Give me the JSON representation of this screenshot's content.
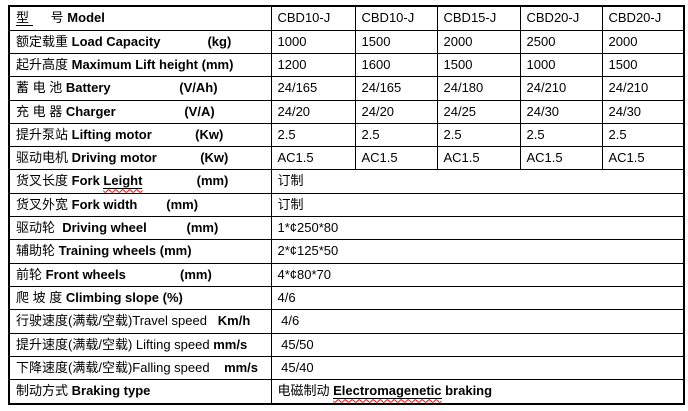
{
  "colors": {
    "border": "#000000",
    "text": "#000000",
    "accent_red": "#ff0000",
    "squiggle_red": "#ff0000",
    "background": "#ffffff"
  },
  "table": {
    "rows": [
      {
        "label_parts": [
          {
            "t": "型 ",
            "u": true
          },
          {
            "t": "     号 "
          },
          {
            "t": "Model",
            "b": true
          }
        ],
        "values": [
          "CBD10-J",
          "CBD10-J",
          "CBD15-J",
          "CBD20-J",
          "CBD20-J"
        ]
      },
      {
        "label_parts": [
          {
            "t": "额定载重 "
          },
          {
            "t": "Load Capacity",
            "b": true
          },
          {
            "t": "             "
          },
          {
            "t": "(kg)",
            "b": true
          }
        ],
        "values": [
          "1000",
          "1500",
          "2000",
          "2500",
          "2000"
        ]
      },
      {
        "label_parts": [
          {
            "t": "起升高度 "
          },
          {
            "t": "Maximum Lift height (mm)",
            "b": true
          }
        ],
        "values": [
          "1200",
          "1600",
          "1500",
          "1000",
          "1500"
        ]
      },
      {
        "label_parts": [
          {
            "t": "蓄 电 池 "
          },
          {
            "t": "Battery",
            "b": true
          },
          {
            "t": "                   "
          },
          {
            "t": "(V/Ah)",
            "b": true
          }
        ],
        "values": [
          "24/165",
          "24/165",
          "24/180",
          "24/210",
          "24/210"
        ]
      },
      {
        "label_parts": [
          {
            "t": "充 电 器 "
          },
          {
            "t": "Charger",
            "b": true
          },
          {
            "t": "                   "
          },
          {
            "t": "(V/A)",
            "b": true
          }
        ],
        "values": [
          "24/20",
          "24/20",
          "24/25",
          "24/30",
          "24/30"
        ]
      },
      {
        "label_parts": [
          {
            "t": "提升泵站 "
          },
          {
            "t": "Lifting motor",
            "b": true
          },
          {
            "t": "            "
          },
          {
            "t": "(Kw)",
            "b": true
          }
        ],
        "values": [
          "2.5",
          "2.5",
          "2.5",
          "2.5",
          "2.5"
        ],
        "value_color": "red"
      },
      {
        "label_parts": [
          {
            "t": "驱动电机 "
          },
          {
            "t": "Driving motor",
            "b": true
          },
          {
            "t": "            "
          },
          {
            "t": "(Kw)",
            "b": true
          }
        ],
        "values": [
          "AC1.5",
          "AC1.5",
          "AC1.5",
          "AC1.5",
          "AC1.5"
        ]
      },
      {
        "label_parts": [
          {
            "t": "货叉长度 "
          },
          {
            "t": "Fork ",
            "b": true
          },
          {
            "t": "Leight",
            "b": true,
            "u": true,
            "sq": true
          },
          {
            "t": "               "
          },
          {
            "t": "(mm)",
            "b": true
          }
        ],
        "value_parts": [
          {
            "t": "订制"
          }
        ]
      },
      {
        "label_parts": [
          {
            "t": "货叉外宽 "
          },
          {
            "t": "Fork width",
            "b": true
          },
          {
            "t": "        "
          },
          {
            "t": "(mm)",
            "b": true
          }
        ],
        "value_parts": [
          {
            "t": "订制"
          }
        ]
      },
      {
        "label_parts": [
          {
            "t": "驱动轮  "
          },
          {
            "t": "Driving wheel",
            "b": true
          },
          {
            "t": "           "
          },
          {
            "t": "(mm)",
            "b": true
          }
        ],
        "value_parts": [
          {
            "t": "1*¢250*80"
          }
        ]
      },
      {
        "label_parts": [
          {
            "t": "辅助轮 "
          },
          {
            "t": "Training wheels (mm)",
            "b": true
          }
        ],
        "value_parts": [
          {
            "t": "2*¢125*50"
          }
        ]
      },
      {
        "label_parts": [
          {
            "t": "前轮 "
          },
          {
            "t": "Front wheels",
            "b": true
          },
          {
            "t": "               "
          },
          {
            "t": "(mm)",
            "b": true
          }
        ],
        "value_parts": [
          {
            "t": "4*¢80*70"
          }
        ]
      },
      {
        "label_parts": [
          {
            "t": "爬 坡 度 "
          },
          {
            "t": "Climbing slope (%)",
            "b": true
          }
        ],
        "value_parts": [
          {
            "t": "4/6"
          }
        ]
      },
      {
        "label_parts": [
          {
            "t": "行驶速度(满载/空载)Travel speed"
          },
          {
            "t": "   "
          },
          {
            "t": "Km/h",
            "b": true
          }
        ],
        "value_parts": [
          {
            "t": " 4/6"
          }
        ]
      },
      {
        "label_parts": [
          {
            "t": "提升速度(满载/空载) Lifting speed "
          },
          {
            "t": "mm/s",
            "b": true
          }
        ],
        "value_parts": [
          {
            "t": " 45/50"
          }
        ]
      },
      {
        "label_parts": [
          {
            "t": "下降速度(满载/空载)Falling speed"
          },
          {
            "t": "    "
          },
          {
            "t": "mm/s",
            "b": true
          }
        ],
        "value_parts": [
          {
            "t": " 45/40"
          }
        ]
      },
      {
        "label_parts": [
          {
            "t": "制动方式 "
          },
          {
            "t": "Braking type",
            "b": true
          }
        ],
        "value_parts": [
          {
            "t": "电磁制动 "
          },
          {
            "t": "Electromagenetic",
            "b": true,
            "u": true,
            "sq": true
          },
          {
            "t": " braking",
            "b": true
          }
        ]
      }
    ]
  }
}
